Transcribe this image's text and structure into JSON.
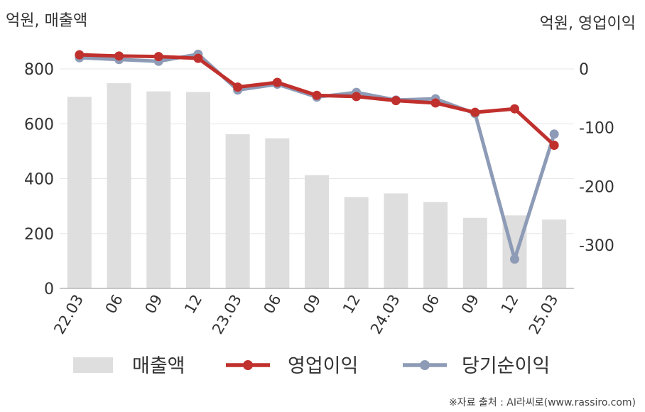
{
  "chart_data": {
    "type": "bar+line",
    "left_unit": "억원, 매출액",
    "right_unit": "억원, 영업이익",
    "categories": [
      "22.03",
      "06",
      "09",
      "12",
      "23.03",
      "06",
      "09",
      "12",
      "24.03",
      "06",
      "09",
      "12",
      "25.03"
    ],
    "left_axis": {
      "ylim": [
        0,
        800
      ],
      "ticks": [
        0,
        200,
        400,
        600,
        800
      ]
    },
    "right_axis": {
      "ylim": [
        -300,
        0
      ],
      "ticks": [
        0,
        -100,
        -200,
        -300
      ]
    },
    "grid": true,
    "legend_position": "bottom",
    "series": [
      {
        "name": "매출액",
        "kind": "bar",
        "axis": "left",
        "color": "#dedede",
        "values": [
          698,
          748,
          718,
          716,
          562,
          547,
          413,
          333,
          346,
          315,
          257,
          266,
          251
        ]
      },
      {
        "name": "영업이익",
        "kind": "line",
        "axis": "right",
        "color": "#c0302d",
        "values": [
          24,
          22,
          21,
          18,
          -31,
          -23,
          -45,
          -47,
          -54,
          -58,
          -74,
          -68,
          -130
        ]
      },
      {
        "name": "당기순이익",
        "kind": "line",
        "axis": "right",
        "color": "#8d9bb6",
        "values": [
          19,
          16,
          13,
          25,
          -36,
          -26,
          -48,
          -40,
          -53,
          -51,
          -76,
          -324,
          -111
        ]
      }
    ]
  },
  "source_text": "※자료 출처 : AI라씨로(www.rassiro.com)"
}
